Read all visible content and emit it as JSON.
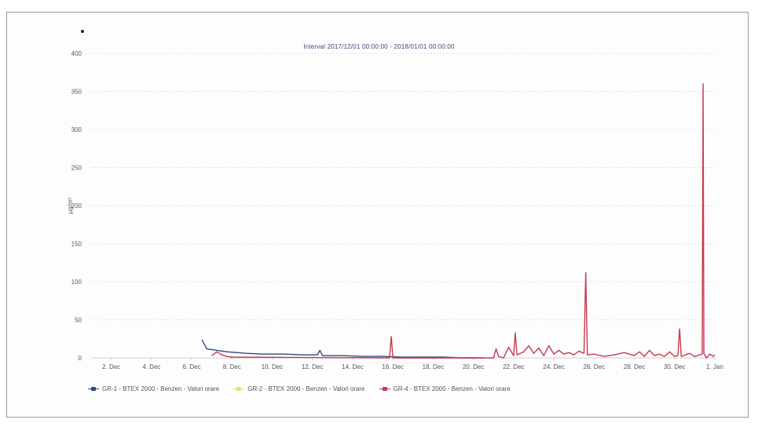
{
  "chart_data": {
    "type": "line",
    "title": "Interval 2017/12/01 00:00:00 - 2018/01/01 00:00:00",
    "xlabel": "",
    "ylabel": "µg/m³",
    "ylim": [
      0,
      400
    ],
    "yticks": [
      0,
      50,
      100,
      150,
      200,
      250,
      300,
      350,
      400
    ],
    "x_range": [
      "2017-12-01",
      "2018-01-01"
    ],
    "xtick_labels": [
      {
        "date": "2017-12-02",
        "label": "2. Dec"
      },
      {
        "date": "2017-12-04",
        "label": "4. Dec"
      },
      {
        "date": "2017-12-06",
        "label": "6. Dec"
      },
      {
        "date": "2017-12-08",
        "label": "8. Dec"
      },
      {
        "date": "2017-12-10",
        "label": "10. Dec"
      },
      {
        "date": "2017-12-12",
        "label": "12. Dec"
      },
      {
        "date": "2017-12-14",
        "label": "14. Dec"
      },
      {
        "date": "2017-12-16",
        "label": "16. Dec"
      },
      {
        "date": "2017-12-18",
        "label": "18. Dec"
      },
      {
        "date": "2017-12-20",
        "label": "20. Dec"
      },
      {
        "date": "2017-12-22",
        "label": "22. Dec"
      },
      {
        "date": "2017-12-24",
        "label": "24. Dec"
      },
      {
        "date": "2017-12-26",
        "label": "26. Dec"
      },
      {
        "date": "2017-12-28",
        "label": "28. Dec"
      },
      {
        "date": "2017-12-30",
        "label": "30. Dec"
      },
      {
        "date": "2018-01-01",
        "label": "1. Jan"
      }
    ],
    "grid": "horizontal-dotted",
    "legend_position": "bottom",
    "series": [
      {
        "name": "GR-1 - BTEX 2000 - Benzen - Valori orare",
        "color": "#2e4a7d",
        "points": [
          [
            "2017-12-06 12:00",
            24
          ],
          [
            "2017-12-06 18:00",
            12
          ],
          [
            "2017-12-07 06:00",
            10
          ],
          [
            "2017-12-07 18:00",
            8
          ],
          [
            "2017-12-08 06:00",
            7
          ],
          [
            "2017-12-08 18:00",
            6
          ],
          [
            "2017-12-09 12:00",
            5
          ],
          [
            "2017-12-10 12:00",
            5
          ],
          [
            "2017-12-11 12:00",
            4
          ],
          [
            "2017-12-12 06:00",
            4
          ],
          [
            "2017-12-12 09:00",
            10
          ],
          [
            "2017-12-12 12:00",
            3
          ],
          [
            "2017-12-13 12:00",
            3
          ],
          [
            "2017-12-14 12:00",
            2
          ],
          [
            "2017-12-15 12:00",
            2
          ],
          [
            "2017-12-16 12:00",
            1
          ],
          [
            "2017-12-17 12:00",
            1
          ],
          [
            "2017-12-18 12:00",
            1
          ],
          [
            "2017-12-19 12:00",
            0
          ],
          [
            "2017-12-20 12:00",
            0
          ]
        ]
      },
      {
        "name": "GR-2 - BTEX 2000 - Benzen - Valori orare",
        "color": "#e7e27a",
        "points": []
      },
      {
        "name": "GR-4 - BTEX 2000 - Benzen - Valori orare",
        "color": "#c9384f",
        "points": [
          [
            "2017-12-07 00:00",
            3
          ],
          [
            "2017-12-07 06:00",
            8
          ],
          [
            "2017-12-07 12:00",
            4
          ],
          [
            "2017-12-07 18:00",
            2
          ],
          [
            "2017-12-08 00:00",
            1
          ],
          [
            "2017-12-15 20:00",
            0
          ],
          [
            "2017-12-15 22:00",
            28
          ],
          [
            "2017-12-16 00:00",
            0
          ],
          [
            "2017-12-21 00:00",
            0
          ],
          [
            "2017-12-21 03:00",
            12
          ],
          [
            "2017-12-21 06:00",
            2
          ],
          [
            "2017-12-21 12:00",
            0
          ],
          [
            "2017-12-21 18:00",
            14
          ],
          [
            "2017-12-22 00:00",
            3
          ],
          [
            "2017-12-22 02:00",
            33
          ],
          [
            "2017-12-22 04:00",
            4
          ],
          [
            "2017-12-22 12:00",
            8
          ],
          [
            "2017-12-22 18:00",
            16
          ],
          [
            "2017-12-23 00:00",
            6
          ],
          [
            "2017-12-23 06:00",
            13
          ],
          [
            "2017-12-23 12:00",
            3
          ],
          [
            "2017-12-23 18:00",
            16
          ],
          [
            "2017-12-24 00:00",
            5
          ],
          [
            "2017-12-24 06:00",
            10
          ],
          [
            "2017-12-24 12:00",
            5
          ],
          [
            "2017-12-24 18:00",
            7
          ],
          [
            "2017-12-25 00:00",
            4
          ],
          [
            "2017-12-25 06:00",
            9
          ],
          [
            "2017-12-25 12:00",
            6
          ],
          [
            "2017-12-25 14:00",
            112
          ],
          [
            "2017-12-25 16:00",
            4
          ],
          [
            "2017-12-26 00:00",
            5
          ],
          [
            "2017-12-26 12:00",
            2
          ],
          [
            "2017-12-27 00:00",
            4
          ],
          [
            "2017-12-27 12:00",
            7
          ],
          [
            "2017-12-28 00:00",
            3
          ],
          [
            "2017-12-28 06:00",
            8
          ],
          [
            "2017-12-28 12:00",
            2
          ],
          [
            "2017-12-28 18:00",
            10
          ],
          [
            "2017-12-29 00:00",
            3
          ],
          [
            "2017-12-29 06:00",
            5
          ],
          [
            "2017-12-29 12:00",
            2
          ],
          [
            "2017-12-29 18:00",
            8
          ],
          [
            "2017-12-30 00:00",
            2
          ],
          [
            "2017-12-30 04:00",
            3
          ],
          [
            "2017-12-30 06:00",
            38
          ],
          [
            "2017-12-30 08:00",
            2
          ],
          [
            "2017-12-30 18:00",
            6
          ],
          [
            "2017-12-31 00:00",
            2
          ],
          [
            "2017-12-31 06:00",
            4
          ],
          [
            "2017-12-31 09:00",
            5
          ],
          [
            "2017-12-31 10:00",
            360
          ],
          [
            "2017-12-31 11:00",
            6
          ],
          [
            "2017-12-31 14:00",
            0
          ],
          [
            "2017-12-31 18:00",
            5
          ],
          [
            "2017-12-31 22:00",
            2
          ],
          [
            "2018-01-01 00:00",
            4
          ]
        ]
      }
    ]
  }
}
